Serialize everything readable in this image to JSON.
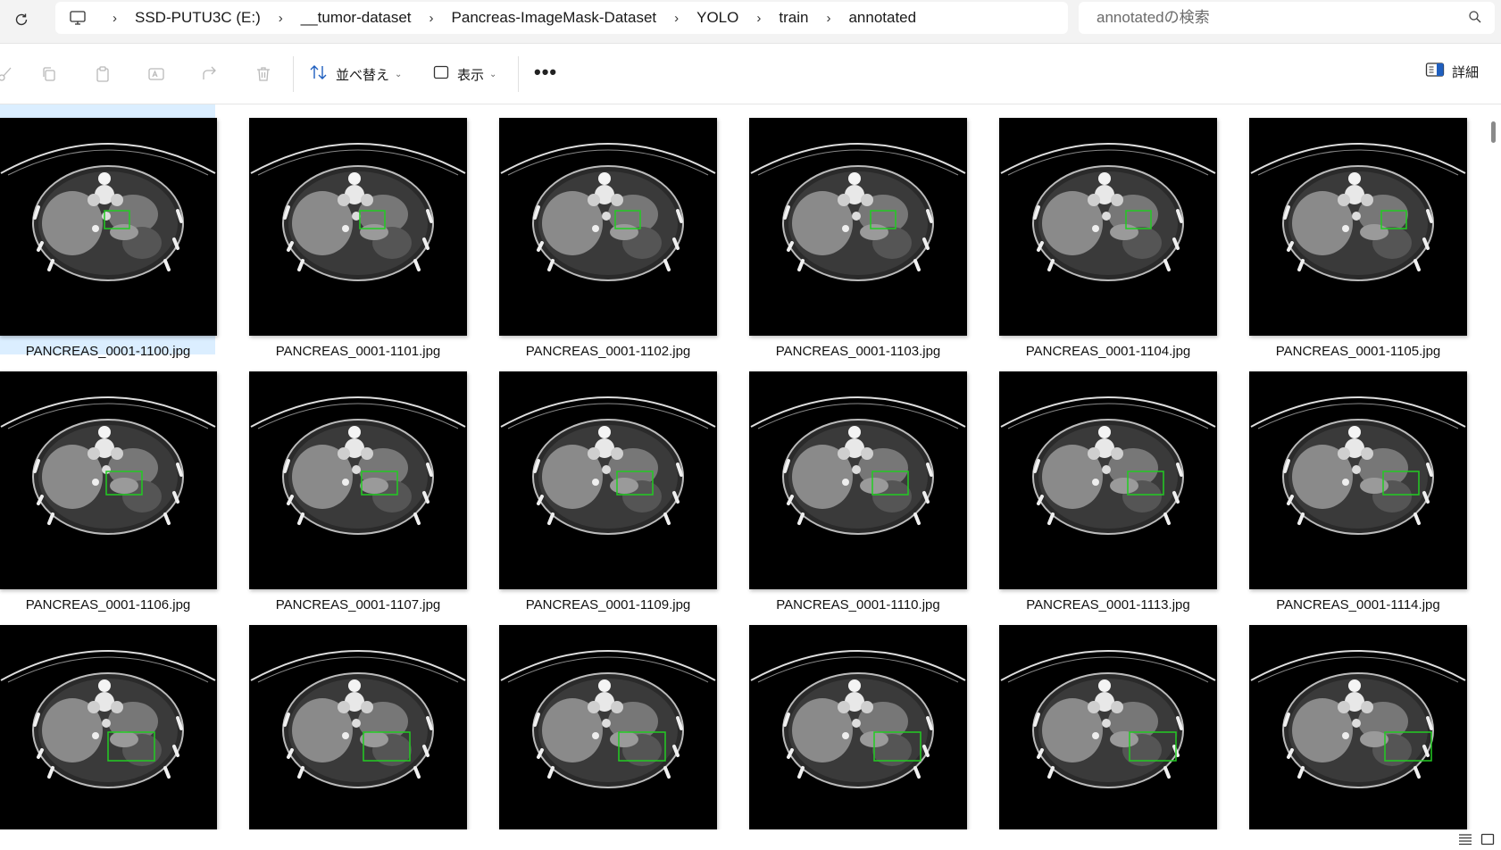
{
  "address_bar": {
    "breadcrumbs": [
      "SSD-PUTU3C (E:)",
      "__tumor-dataset",
      "Pancreas-ImageMask-Dataset",
      "YOLO",
      "train",
      "annotated"
    ],
    "search_placeholder": "annotatedの検索"
  },
  "toolbar": {
    "sort_label": "並べ替え",
    "view_label": "表示",
    "more_label": "•••",
    "details_label": "詳細"
  },
  "files": [
    {
      "name": "PANCREAS_0001-1100.jpg",
      "selected": true
    },
    {
      "name": "PANCREAS_0001-1101.jpg",
      "selected": false
    },
    {
      "name": "PANCREAS_0001-1102.jpg",
      "selected": false
    },
    {
      "name": "PANCREAS_0001-1103.jpg",
      "selected": false
    },
    {
      "name": "PANCREAS_0001-1104.jpg",
      "selected": false
    },
    {
      "name": "PANCREAS_0001-1105.jpg",
      "selected": false
    },
    {
      "name": "PANCREAS_0001-1106.jpg",
      "selected": false
    },
    {
      "name": "PANCREAS_0001-1107.jpg",
      "selected": false
    },
    {
      "name": "PANCREAS_0001-1109.jpg",
      "selected": false
    },
    {
      "name": "PANCREAS_0001-1110.jpg",
      "selected": false
    },
    {
      "name": "PANCREAS_0001-1113.jpg",
      "selected": false
    },
    {
      "name": "PANCREAS_0001-1114.jpg",
      "selected": false
    },
    {
      "name": "",
      "selected": false
    },
    {
      "name": "",
      "selected": false
    },
    {
      "name": "",
      "selected": false
    },
    {
      "name": "",
      "selected": false
    },
    {
      "name": "",
      "selected": false
    },
    {
      "name": "",
      "selected": false
    }
  ],
  "colors": {
    "annotation_box": "#22cc22",
    "selection": "#dbeeff"
  }
}
